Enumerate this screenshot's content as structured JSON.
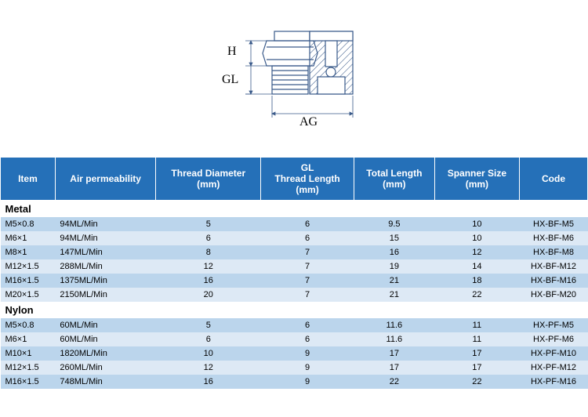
{
  "diagram": {
    "labels": {
      "h": "H",
      "gl": "GL",
      "ag": "AG"
    },
    "stroke": "#3a5a8a",
    "hatch": "#3a5a8a"
  },
  "table": {
    "headers": [
      "Item",
      "Air permeability",
      "Thread Diameter\n(mm)",
      "GL\nThread Length\n(mm)",
      "Total Length\n(mm)",
      "Spanner Size\n(mm)",
      "Code"
    ],
    "header_bg": "#2570b8",
    "header_color": "#ffffff",
    "row_even_bg": "#bbd5ec",
    "row_odd_bg": "#dde9f5",
    "sections": [
      {
        "title": "Metal",
        "rows": [
          [
            "M5×0.8",
            "94ML/Min",
            "5",
            "6",
            "9.5",
            "10",
            "HX-BF-M5"
          ],
          [
            "M6×1",
            "94ML/Min",
            "6",
            "6",
            "15",
            "10",
            "HX-BF-M6"
          ],
          [
            "M8×1",
            "147ML/Min",
            "8",
            "7",
            "16",
            "12",
            "HX-BF-M8"
          ],
          [
            "M12×1.5",
            "288ML/Min",
            "12",
            "7",
            "19",
            "14",
            "HX-BF-M12"
          ],
          [
            "M16×1.5",
            "1375ML/Min",
            "16",
            "7",
            "21",
            "18",
            "HX-BF-M16"
          ],
          [
            "M20×1.5",
            "2150ML/Min",
            "20",
            "7",
            "21",
            "22",
            "HX-BF-M20"
          ]
        ]
      },
      {
        "title": "Nylon",
        "rows": [
          [
            "M5×0.8",
            "60ML/Min",
            "5",
            "6",
            "11.6",
            "11",
            "HX-PF-M5"
          ],
          [
            "M6×1",
            "60ML/Min",
            "6",
            "6",
            "11.6",
            "11",
            "HX-PF-M6"
          ],
          [
            "M10×1",
            "1820ML/Min",
            "10",
            "9",
            "17",
            "17",
            "HX-PF-M10"
          ],
          [
            "M12×1.5",
            "260ML/Min",
            "12",
            "9",
            "17",
            "17",
            "HX-PF-M12"
          ],
          [
            "M16×1.5",
            "748ML/Min",
            "16",
            "9",
            "22",
            "22",
            "HX-PF-M16"
          ]
        ]
      }
    ]
  }
}
